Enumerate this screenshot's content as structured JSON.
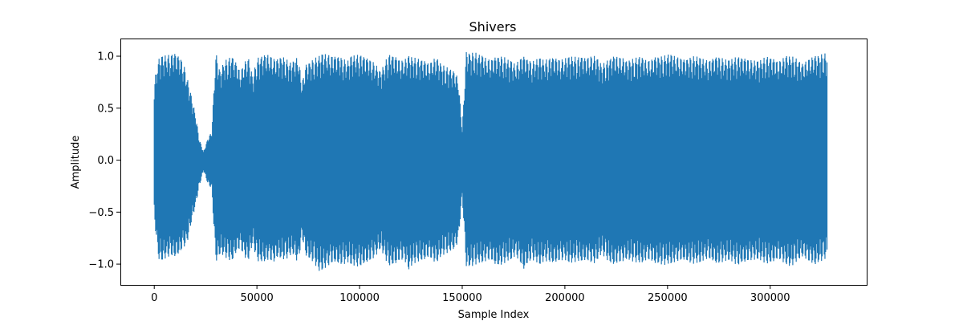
{
  "chart_data": {
    "type": "line",
    "title": "Shivers",
    "xlabel": "Sample Index",
    "ylabel": "Amplitude",
    "xlim": [
      -16500,
      347000
    ],
    "ylim": [
      -1.2,
      1.17
    ],
    "x_ticks": [
      {
        "value": 0,
        "label": "0"
      },
      {
        "value": 50000,
        "label": "50000"
      },
      {
        "value": 100000,
        "label": "100000"
      },
      {
        "value": 150000,
        "label": "150000"
      },
      {
        "value": 200000,
        "label": "200000"
      },
      {
        "value": 250000,
        "label": "250000"
      },
      {
        "value": 300000,
        "label": "300000"
      }
    ],
    "y_ticks": [
      {
        "value": -1.0,
        "label": "−1.0"
      },
      {
        "value": -0.5,
        "label": "−0.5"
      },
      {
        "value": 0.0,
        "label": "0.0"
      },
      {
        "value": 0.5,
        "label": "0.5"
      },
      {
        "value": 1.0,
        "label": "1.0"
      }
    ],
    "grid": false,
    "color": "#1f77b4",
    "series": [
      {
        "x": [
          0,
          2000,
          4000,
          6000,
          8000,
          10000,
          12000,
          14000,
          16000,
          18000,
          20000,
          22000,
          24000,
          26000,
          28000,
          30000,
          32000,
          34000,
          36000,
          38000,
          40000,
          42000,
          44000,
          46000,
          48000,
          50000,
          52000,
          54000,
          56000,
          58000,
          60000,
          62000,
          64000,
          66000,
          68000,
          70000,
          72000,
          74000,
          76000,
          78000,
          80000,
          82000,
          84000,
          86000,
          88000,
          90000,
          92000,
          94000,
          96000,
          98000,
          100000,
          102000,
          104000,
          106000,
          108000,
          110000,
          112000,
          114000,
          116000,
          118000,
          120000,
          122000,
          124000,
          126000,
          128000,
          130000,
          132000,
          134000,
          136000,
          138000,
          140000,
          142000,
          144000,
          146000,
          148000,
          150000,
          152000,
          154000,
          156000,
          158000,
          160000,
          162000,
          164000,
          166000,
          168000,
          170000,
          172000,
          174000,
          176000,
          178000,
          180000,
          182000,
          184000,
          186000,
          188000,
          190000,
          192000,
          194000,
          196000,
          198000,
          200000,
          202000,
          204000,
          206000,
          208000,
          210000,
          212000,
          214000,
          216000,
          218000,
          220000,
          222000,
          224000,
          226000,
          228000,
          230000,
          232000,
          234000,
          236000,
          238000,
          240000,
          242000,
          244000,
          246000,
          248000,
          250000,
          252000,
          254000,
          256000,
          258000,
          260000,
          262000,
          264000,
          266000,
          268000,
          270000,
          272000,
          274000,
          276000,
          278000,
          280000,
          282000,
          284000,
          286000,
          288000,
          290000,
          292000,
          294000,
          296000,
          298000,
          300000,
          302000,
          304000,
          306000,
          308000,
          310000,
          312000,
          314000,
          316000,
          318000,
          320000,
          322000,
          324000,
          326000,
          328000,
          330000
        ],
        "max": [
          0.75,
          0.97,
          1.0,
          1.01,
          1.02,
          1.03,
          1.0,
          0.95,
          0.8,
          0.62,
          0.45,
          0.2,
          0.08,
          0.2,
          0.28,
          1.04,
          0.85,
          0.95,
          0.98,
          1.0,
          0.93,
          0.85,
          0.95,
          0.97,
          0.8,
          0.98,
          1.0,
          1.01,
          1.02,
          0.98,
          0.97,
          1.0,
          0.98,
          0.94,
          0.95,
          1.0,
          0.75,
          0.92,
          0.95,
          0.98,
          1.0,
          1.02,
          1.02,
          1.01,
          1.0,
          1.0,
          0.98,
          0.95,
          1.0,
          1.01,
          1.02,
          1.0,
          0.98,
          0.96,
          0.92,
          0.85,
          0.92,
          1.02,
          1.01,
          0.99,
          0.96,
          0.97,
          1.0,
          0.99,
          0.98,
          0.97,
          0.95,
          0.93,
          0.98,
          0.97,
          0.92,
          0.9,
          0.88,
          0.85,
          0.8,
          0.3,
          1.04,
          1.03,
          1.04,
          1.02,
          1.0,
          0.98,
          0.97,
          0.99,
          1.0,
          1.0,
          0.97,
          0.95,
          0.92,
          0.98,
          1.0,
          0.97,
          0.95,
          0.97,
          0.98,
          0.96,
          0.98,
          0.99,
          0.98,
          0.97,
          0.98,
          0.99,
          1.0,
          0.99,
          1.0,
          0.98,
          1.0,
          1.01,
          0.97,
          0.92,
          0.95,
          0.98,
          1.0,
          1.0,
          0.99,
          0.95,
          0.97,
          0.98,
          1.0,
          0.98,
          0.96,
          0.97,
          0.99,
          1.0,
          1.0,
          1.02,
          1.01,
          1.0,
          0.99,
          0.97,
          0.98,
          1.0,
          1.0,
          0.98,
          0.97,
          0.96,
          0.98,
          1.0,
          0.99,
          0.97,
          0.96,
          0.98,
          1.0,
          0.99,
          0.98,
          0.97,
          0.96,
          0.95,
          0.97,
          1.0,
          0.99,
          0.97,
          0.95,
          0.98,
          1.0,
          1.0,
          0.99,
          0.96,
          0.92,
          0.97,
          0.99,
          1.0,
          1.01,
          1.03,
          1.02
        ],
        "min": [
          -0.55,
          -0.95,
          -0.96,
          -0.94,
          -0.92,
          -0.93,
          -0.9,
          -0.85,
          -0.8,
          -0.6,
          -0.45,
          -0.25,
          -0.1,
          -0.22,
          -0.28,
          -0.98,
          -0.9,
          -0.92,
          -0.96,
          -0.97,
          -0.88,
          -0.85,
          -0.94,
          -0.95,
          -0.8,
          -0.97,
          -0.98,
          -0.97,
          -0.96,
          -0.99,
          -0.93,
          -0.95,
          -0.96,
          -0.92,
          -0.9,
          -1.0,
          -0.75,
          -0.92,
          -0.96,
          -0.99,
          -1.07,
          -1.05,
          -1.03,
          -1.0,
          -0.98,
          -1.0,
          -1.01,
          -0.98,
          -1.0,
          -1.02,
          -1.03,
          -1.0,
          -0.98,
          -0.96,
          -0.92,
          -0.85,
          -0.92,
          -1.02,
          -1.01,
          -0.99,
          -0.96,
          -0.97,
          -1.05,
          -1.0,
          -0.98,
          -0.97,
          -0.95,
          -0.93,
          -0.98,
          -0.97,
          -0.92,
          -0.9,
          -0.88,
          -0.85,
          -0.8,
          -0.35,
          -1.02,
          -1.03,
          -1.01,
          -0.99,
          -0.98,
          -0.97,
          -0.96,
          -1.0,
          -1.02,
          -1.0,
          -0.97,
          -0.95,
          -0.92,
          -0.98,
          -1.05,
          -0.99,
          -0.96,
          -0.98,
          -1.0,
          -0.97,
          -0.98,
          -0.99,
          -0.98,
          -0.97,
          -0.96,
          -0.98,
          -0.99,
          -0.97,
          -0.98,
          -0.96,
          -0.98,
          -1.0,
          -0.95,
          -0.9,
          -0.95,
          -0.99,
          -1.0,
          -0.99,
          -0.98,
          -0.95,
          -0.97,
          -0.98,
          -0.99,
          -0.98,
          -0.96,
          -0.97,
          -0.99,
          -1.0,
          -1.01,
          -1.0,
          -0.99,
          -0.98,
          -0.97,
          -0.96,
          -0.98,
          -1.0,
          -0.99,
          -0.98,
          -0.96,
          -0.95,
          -0.97,
          -1.0,
          -0.99,
          -0.97,
          -0.96,
          -0.98,
          -1.02,
          -0.99,
          -0.98,
          -0.97,
          -0.96,
          -0.95,
          -0.97,
          -1.0,
          -0.99,
          -0.97,
          -0.95,
          -0.98,
          -1.0,
          -1.03,
          -0.99,
          -0.96,
          -0.92,
          -0.97,
          -0.99,
          -1.0,
          -0.98,
          -0.96,
          -0.93
        ]
      }
    ]
  }
}
